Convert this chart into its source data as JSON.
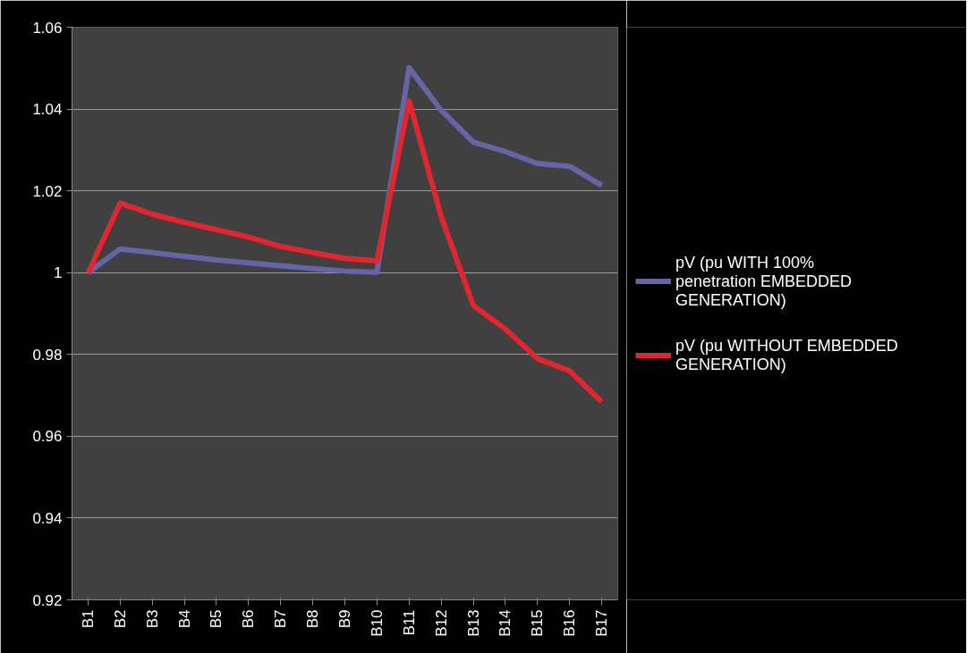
{
  "chart_data": {
    "type": "line",
    "categories": [
      "B1",
      "B2",
      "B3",
      "B4",
      "B5",
      "B6",
      "B7",
      "B8",
      "B9",
      "B10",
      "B11",
      "B12",
      "B13",
      "B14",
      "B15",
      "B16",
      "B17"
    ],
    "series": [
      {
        "name": "pV (pu WITH 100% penetration EMBEDDED GENERATION)",
        "color": "#6464a6",
        "values": [
          1.0,
          1.0058,
          1.0049,
          1.004,
          1.0031,
          1.0024,
          1.0017,
          1.001,
          1.0004,
          1.0001,
          1.0501,
          1.0397,
          1.0319,
          1.0296,
          1.0267,
          1.026,
          1.0213
        ]
      },
      {
        "name": "pV (pu WITHOUT EMBEDDED GENERATION)",
        "color": "#e0262e",
        "values": [
          1.0,
          1.017,
          1.0143,
          1.0123,
          1.0105,
          1.0087,
          1.0064,
          1.0049,
          1.0035,
          1.0029,
          1.042,
          1.0137,
          0.992,
          0.9862,
          0.979,
          0.976,
          0.9684
        ]
      }
    ],
    "ylim": [
      0.92,
      1.06
    ],
    "yticks": [
      0.92,
      0.94,
      0.96,
      0.98,
      1,
      1.02,
      1.04,
      1.06
    ],
    "grid": "y",
    "legend": "right",
    "marker": "none",
    "line_style": "solid"
  }
}
